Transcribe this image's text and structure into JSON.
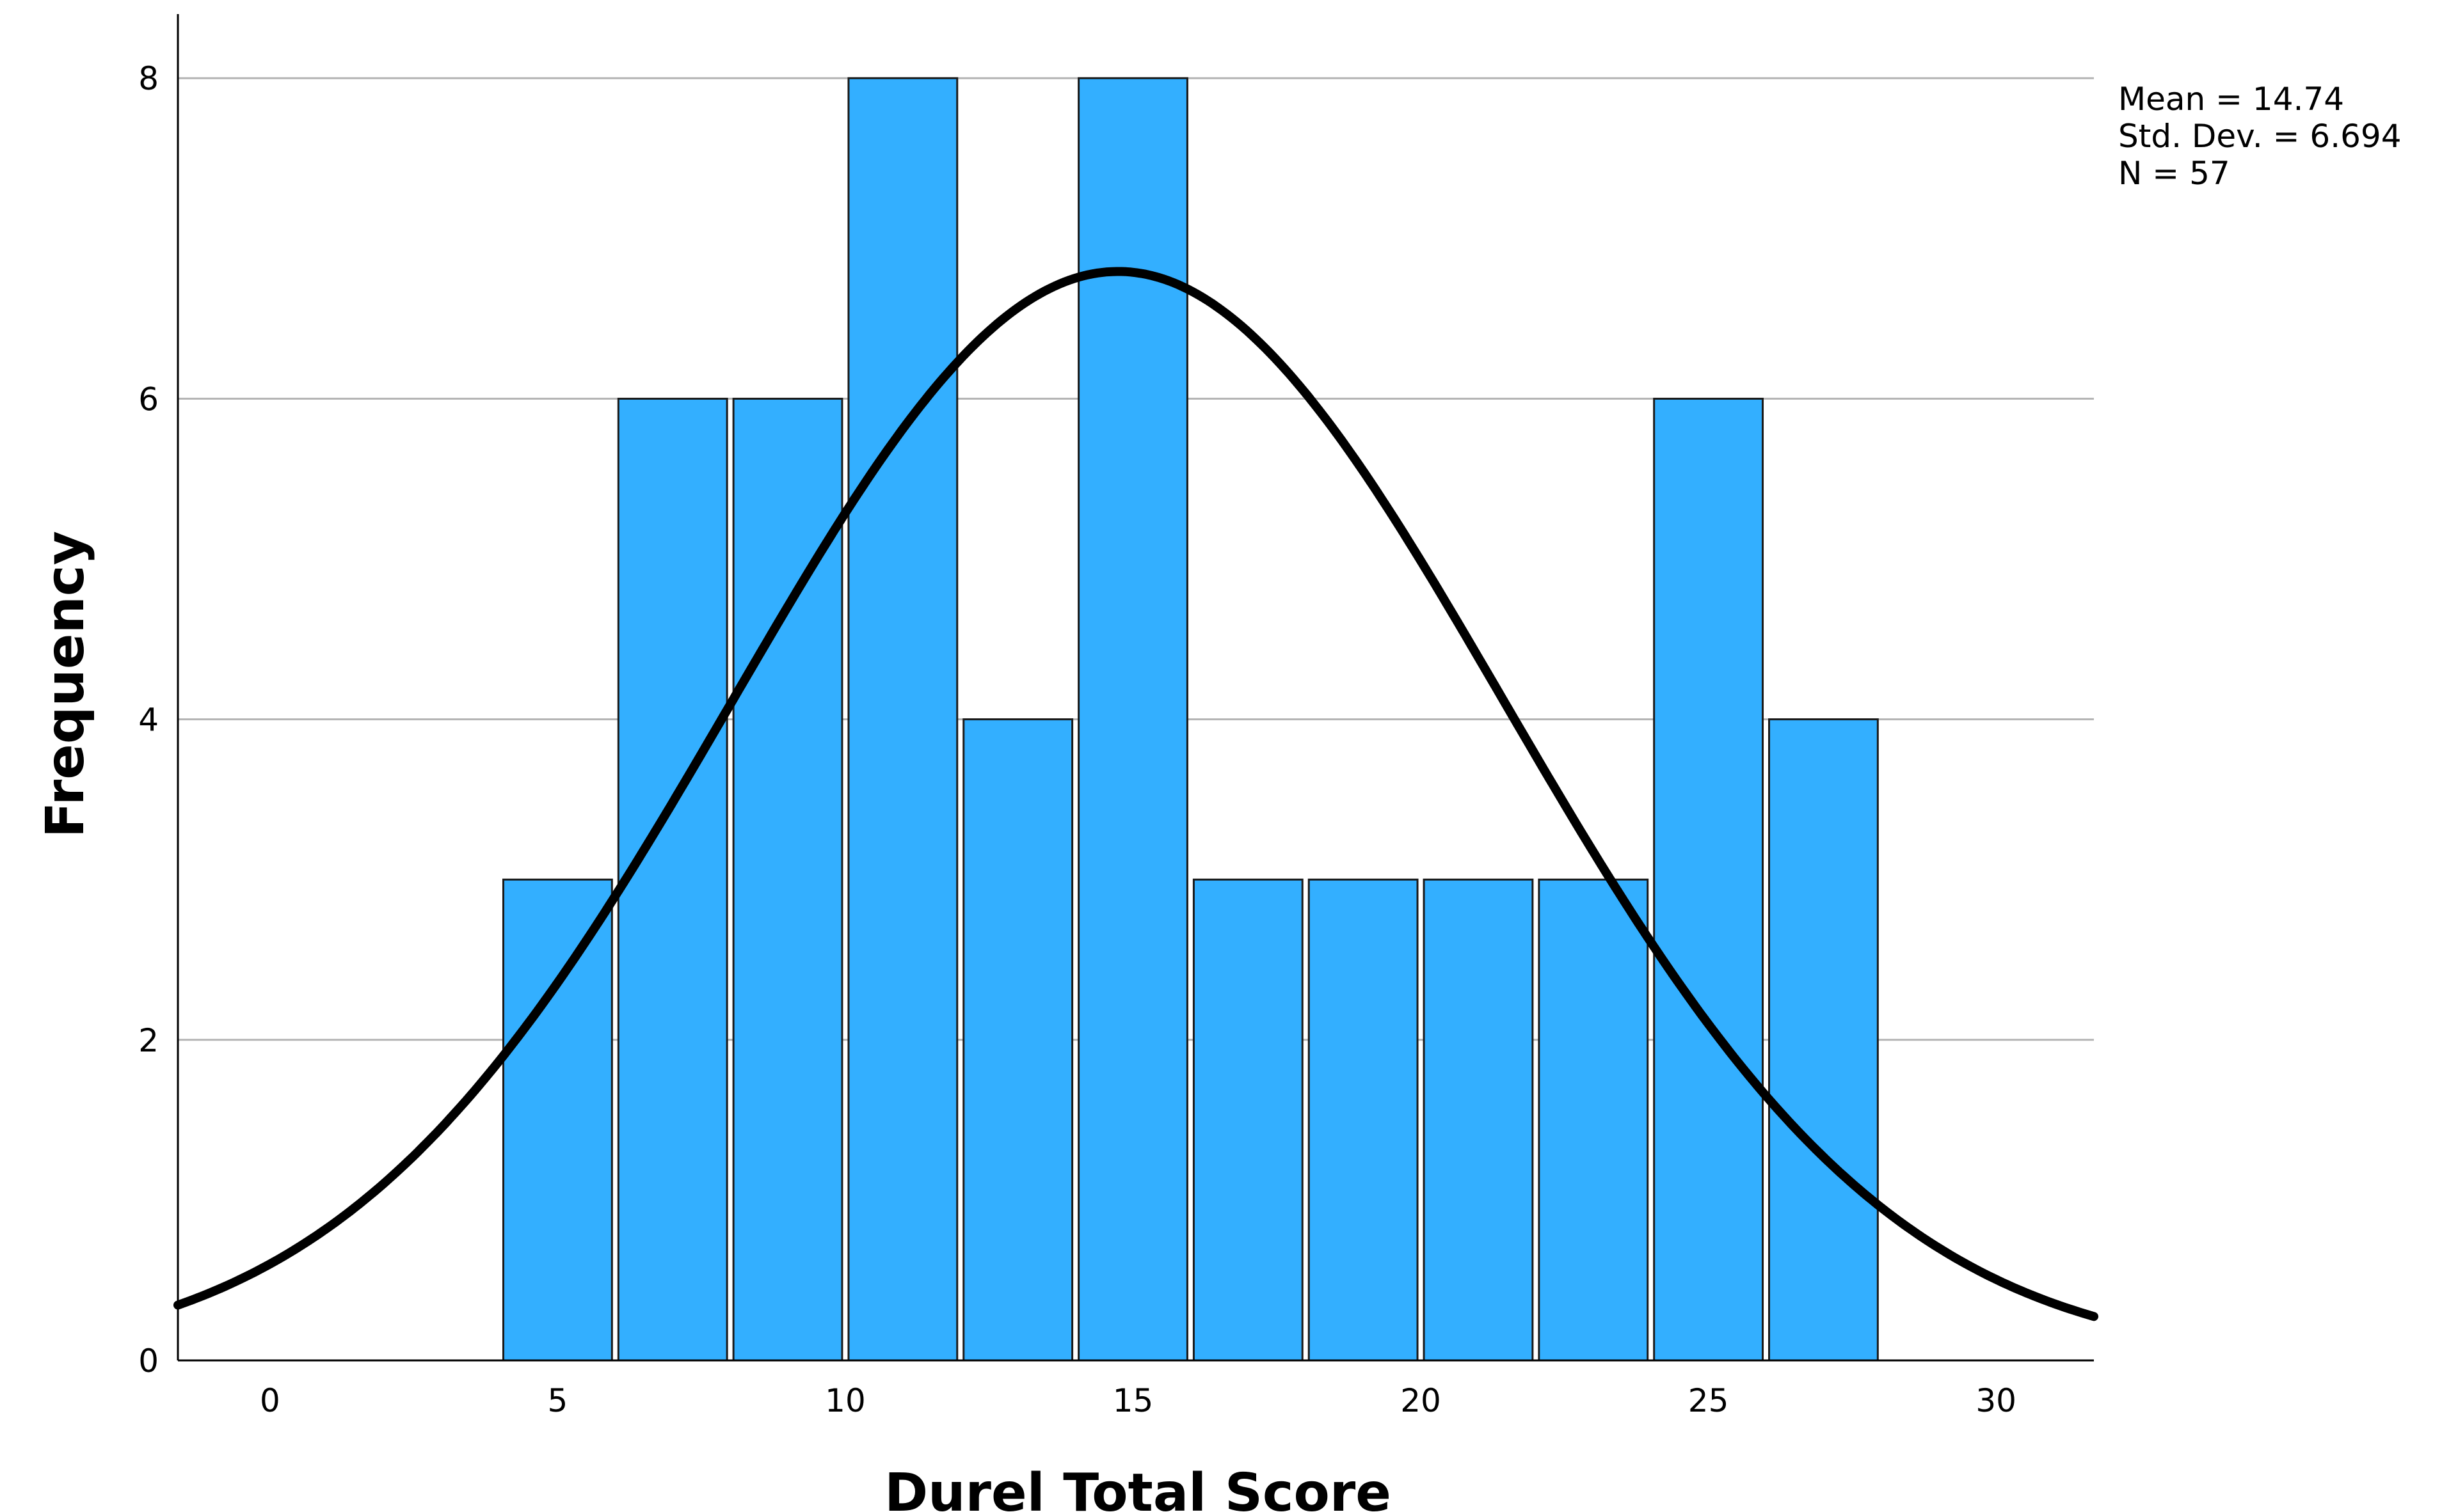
{
  "chart_data": {
    "type": "bar",
    "subtype": "histogram",
    "xlabel": "Durel Total Score",
    "ylabel": "Frequency",
    "bin_width": 2,
    "bins": [
      {
        "start": 4,
        "end": 6,
        "count": 3
      },
      {
        "start": 6,
        "end": 8,
        "count": 6
      },
      {
        "start": 8,
        "end": 10,
        "count": 6
      },
      {
        "start": 10,
        "end": 12,
        "count": 8
      },
      {
        "start": 12,
        "end": 14,
        "count": 4
      },
      {
        "start": 14,
        "end": 16,
        "count": 8
      },
      {
        "start": 16,
        "end": 18,
        "count": 3
      },
      {
        "start": 18,
        "end": 20,
        "count": 3
      },
      {
        "start": 20,
        "end": 22,
        "count": 3
      },
      {
        "start": 22,
        "end": 24,
        "count": 3
      },
      {
        "start": 24,
        "end": 26,
        "count": 6
      },
      {
        "start": 26,
        "end": 28,
        "count": 4
      }
    ],
    "xlim": [
      -1.6,
      31.7
    ],
    "ylim": [
      0,
      8.4
    ],
    "x_ticks": [
      "0",
      "5",
      "10",
      "15",
      "20",
      "25",
      "30"
    ],
    "y_ticks": [
      "0",
      "2",
      "4",
      "6",
      "8"
    ],
    "gridlines": "horizontal",
    "normal_curve": {
      "mean": 14.74,
      "sd": 6.694,
      "n": 57
    },
    "stats": [
      "Mean = 14.74",
      "Std. Dev. = 6.694",
      "N = 57"
    ],
    "colors": {
      "bar_fill": "#33AFFF",
      "bar_stroke": "#1a1a1a",
      "curve": "#000000",
      "grid": "#b4b4b4",
      "axis": "#000000"
    }
  }
}
